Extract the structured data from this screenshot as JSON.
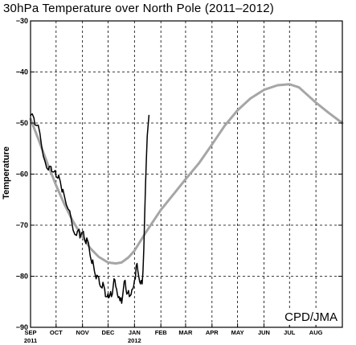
{
  "chart_data": {
    "type": "line",
    "title": "30hPa Temperature over North Pole (2011–2012)",
    "ylabel": "Temperature",
    "xlabel": "",
    "ylim": [
      -90,
      -30
    ],
    "y_ticks": [
      -90,
      -80,
      -70,
      -60,
      -50,
      -40,
      -30
    ],
    "x_range_days": [
      0,
      366
    ],
    "x_ticks": [
      {
        "label": "SEP",
        "sub": "2011",
        "day": 0
      },
      {
        "label": "OCT",
        "sub": "",
        "day": 30
      },
      {
        "label": "NOV",
        "sub": "",
        "day": 61
      },
      {
        "label": "DEC",
        "sub": "",
        "day": 91
      },
      {
        "label": "JAN",
        "sub": "2012",
        "day": 122
      },
      {
        "label": "FEB",
        "sub": "",
        "day": 153
      },
      {
        "label": "MAR",
        "sub": "",
        "day": 182
      },
      {
        "label": "APR",
        "sub": "",
        "day": 213
      },
      {
        "label": "MAY",
        "sub": "",
        "day": 243
      },
      {
        "label": "JUN",
        "sub": "",
        "day": 274
      },
      {
        "label": "JUL",
        "sub": "",
        "day": 304
      },
      {
        "label": "AUG",
        "sub": "",
        "day": 335
      }
    ],
    "grid": true,
    "credit": "CPD/JMA",
    "series": [
      {
        "name": "",
        "color": "#a6a6a6",
        "width": 3,
        "points": [
          [
            0,
            -49.2
          ],
          [
            10,
            -53.5
          ],
          [
            20,
            -58
          ],
          [
            30,
            -62.2
          ],
          [
            40,
            -66
          ],
          [
            50,
            -69.3
          ],
          [
            61,
            -72.3
          ],
          [
            70,
            -74.5
          ],
          [
            80,
            -76.2
          ],
          [
            91,
            -77.3
          ],
          [
            100,
            -77.5
          ],
          [
            107,
            -77.3
          ],
          [
            115,
            -76.3
          ],
          [
            122,
            -75
          ],
          [
            135,
            -71.5
          ],
          [
            153,
            -67
          ],
          [
            170,
            -63.5
          ],
          [
            182,
            -61
          ],
          [
            198,
            -57.8
          ],
          [
            213,
            -54.2
          ],
          [
            228,
            -50.5
          ],
          [
            243,
            -47.5
          ],
          [
            258,
            -45.2
          ],
          [
            274,
            -43.5
          ],
          [
            290,
            -42.6
          ],
          [
            304,
            -42.4
          ],
          [
            315,
            -43
          ],
          [
            325,
            -44.5
          ],
          [
            335,
            -46
          ],
          [
            350,
            -48
          ],
          [
            366,
            -50
          ]
        ]
      },
      {
        "name": "",
        "color": "#000000",
        "width": 1.5,
        "points": [
          [
            0,
            -48.5
          ],
          [
            2,
            -48.2
          ],
          [
            4,
            -49
          ],
          [
            5,
            -50.3
          ],
          [
            7,
            -50.5
          ],
          [
            9,
            -50.4
          ],
          [
            11,
            -52
          ],
          [
            13,
            -54.5
          ],
          [
            15,
            -56.5
          ],
          [
            17,
            -57.5
          ],
          [
            19,
            -58.8
          ],
          [
            21,
            -59.2
          ],
          [
            22,
            -58.5
          ],
          [
            24,
            -58.5
          ],
          [
            25,
            -59.5
          ],
          [
            27,
            -59.6
          ],
          [
            29,
            -59.3
          ],
          [
            30,
            -60.5
          ],
          [
            32,
            -60.8
          ],
          [
            33,
            -60.2
          ],
          [
            35,
            -61.5
          ],
          [
            37,
            -63.5
          ],
          [
            38,
            -63
          ],
          [
            40,
            -64.5
          ],
          [
            42,
            -66
          ],
          [
            44,
            -66.8
          ],
          [
            46,
            -67.2
          ],
          [
            48,
            -69
          ],
          [
            50,
            -71
          ],
          [
            52,
            -71.8
          ],
          [
            54,
            -72
          ],
          [
            55,
            -71.2
          ],
          [
            57,
            -70.8
          ],
          [
            58,
            -72.5
          ],
          [
            60,
            -71.5
          ],
          [
            62,
            -71.2
          ],
          [
            63,
            -72.5
          ],
          [
            65,
            -73.6
          ],
          [
            66,
            -72.5
          ],
          [
            68,
            -73.5
          ],
          [
            70,
            -76
          ],
          [
            72,
            -77.5
          ],
          [
            73,
            -76.8
          ],
          [
            75,
            -79
          ],
          [
            77,
            -80.5
          ],
          [
            78,
            -79.8
          ],
          [
            80,
            -80.2
          ],
          [
            81,
            -81.5
          ],
          [
            82,
            -82
          ],
          [
            84,
            -82.3
          ],
          [
            85,
            -81.2
          ],
          [
            87,
            -82.5
          ],
          [
            88,
            -84
          ],
          [
            90,
            -84
          ],
          [
            91,
            -83.4
          ],
          [
            92,
            -84.2
          ],
          [
            93,
            -83.8
          ],
          [
            94,
            -83
          ],
          [
            95,
            -84
          ],
          [
            96,
            -83.5
          ],
          [
            97,
            -82
          ],
          [
            98,
            -80.5
          ],
          [
            99,
            -80.7
          ],
          [
            100,
            -82
          ],
          [
            101,
            -82.5
          ],
          [
            102,
            -83.6
          ],
          [
            103,
            -84.2
          ],
          [
            104,
            -84
          ],
          [
            105,
            -84.8
          ],
          [
            106,
            -84.2
          ],
          [
            107,
            -85.3
          ],
          [
            108,
            -84
          ],
          [
            109,
            -82.5
          ],
          [
            110,
            -81
          ],
          [
            111,
            -80.8
          ],
          [
            112,
            -82.5
          ],
          [
            113,
            -83.5
          ],
          [
            114,
            -83.3
          ],
          [
            115,
            -82.8
          ],
          [
            116,
            -84
          ],
          [
            117,
            -83.8
          ],
          [
            118,
            -83.6
          ],
          [
            119,
            -82.6
          ],
          [
            120,
            -82.5
          ],
          [
            121,
            -82
          ],
          [
            122,
            -80.8
          ],
          [
            123,
            -80.5
          ],
          [
            124,
            -78
          ],
          [
            125,
            -77.5
          ],
          [
            126,
            -79
          ],
          [
            127,
            -80
          ],
          [
            128,
            -81
          ],
          [
            129,
            -81.5
          ],
          [
            130,
            -80.8
          ],
          [
            131,
            -81.5
          ],
          [
            132,
            -79
          ],
          [
            133,
            -74.5
          ],
          [
            134,
            -68
          ],
          [
            135,
            -62
          ],
          [
            136,
            -57
          ],
          [
            137,
            -52.5
          ],
          [
            138,
            -50.5
          ],
          [
            139,
            -48.5
          ]
        ]
      }
    ]
  }
}
